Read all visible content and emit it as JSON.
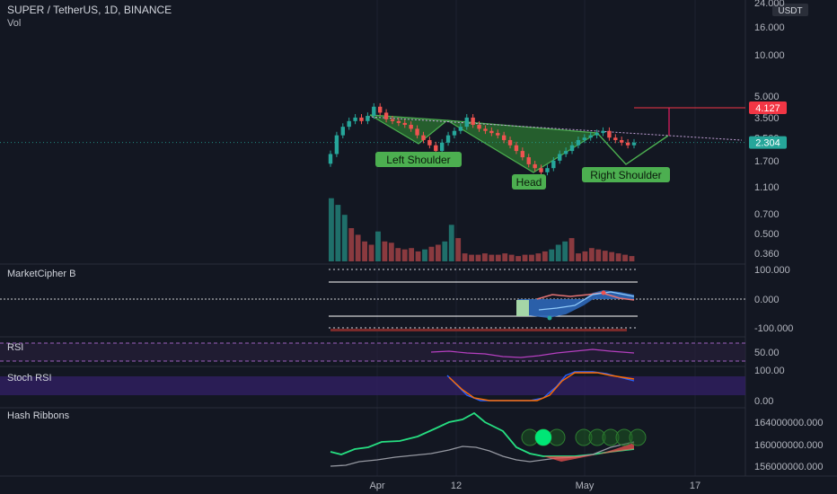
{
  "header": {
    "title": "SUPER / TetherUS, 1D, BINANCE",
    "vol_label": "Vol",
    "currency": "USDT"
  },
  "colors": {
    "background": "#131722",
    "up": "#26a69a",
    "down": "#ef5350",
    "pattern_fill": "#2e7d32",
    "label_green": "#4caf50",
    "target_red": "#f23645",
    "rsi_line": "#b43fbf",
    "stoch_band": "#2f1f5e",
    "hash_fast": "#26de81",
    "hash_slow": "#9598a1"
  },
  "chart_data": [
    {
      "type": "line",
      "panel": "price",
      "scale": "log",
      "y_ticks": [
        "24.000",
        "16.000",
        "10.000",
        "5.000",
        "3.500",
        "2.500",
        "1.700",
        "1.100",
        "0.700",
        "0.500",
        "0.360"
      ],
      "y_tick_values": [
        24,
        16,
        10,
        5,
        3.5,
        2.5,
        1.7,
        1.1,
        0.7,
        0.5,
        0.36
      ],
      "x_ticks": [
        "Apr",
        "12",
        "May",
        "17"
      ],
      "price_labels": {
        "target": "4.127",
        "current": "2.304"
      },
      "annotations": [
        "Left Shoulder",
        "Head",
        "Right Shoulder"
      ],
      "pattern": "inverse head and shoulders",
      "close_approx": [
        1.9,
        2.6,
        3.0,
        3.3,
        3.5,
        3.3,
        3.6,
        4.2,
        3.8,
        3.4,
        3.3,
        3.2,
        3.1,
        2.9,
        2.6,
        2.4,
        2.2,
        2.0,
        2.3,
        2.6,
        2.8,
        3.0,
        3.5,
        3.1,
        2.9,
        2.8,
        2.7,
        2.6,
        2.4,
        2.2,
        2.0,
        1.8,
        1.6,
        1.5,
        1.4,
        1.5,
        1.7,
        1.9,
        2.0,
        2.2,
        2.4,
        2.5,
        2.6,
        2.7,
        2.8,
        2.5,
        2.4,
        2.3,
        2.2,
        2.3
      ]
    },
    {
      "type": "bar",
      "panel": "volume",
      "series_name": "Vol",
      "relative_values": [
        0.95,
        0.85,
        0.7,
        0.5,
        0.4,
        0.3,
        0.25,
        0.45,
        0.3,
        0.28,
        0.2,
        0.18,
        0.2,
        0.15,
        0.18,
        0.22,
        0.25,
        0.3,
        0.55,
        0.35,
        0.12,
        0.1,
        0.1,
        0.12,
        0.1,
        0.1,
        0.12,
        0.1,
        0.08,
        0.1,
        0.1,
        0.12,
        0.15,
        0.18,
        0.25,
        0.3,
        0.35,
        0.12,
        0.15,
        0.2,
        0.18,
        0.16,
        0.14,
        0.12,
        0.1,
        0.08
      ]
    },
    {
      "type": "area",
      "panel": "MarketCipher B",
      "title": "MarketCipher B",
      "y_ticks": [
        "100.000",
        "0.000",
        "-100.000"
      ],
      "y_tick_values": [
        100,
        0,
        -100
      ]
    },
    {
      "type": "line",
      "panel": "RSI",
      "title": "RSI",
      "y_ticks": [
        "50.00"
      ],
      "y_tick_values": [
        50
      ]
    },
    {
      "type": "line",
      "panel": "Stoch RSI",
      "title": "Stoch RSI",
      "y_ticks": [
        "100.00",
        "0.00"
      ],
      "y_tick_values": [
        100,
        0
      ]
    },
    {
      "type": "line",
      "panel": "Hash Ribbons",
      "title": "Hash Ribbons",
      "y_ticks": [
        "164000000.000",
        "160000000.000",
        "156000000.000"
      ],
      "y_tick_values": [
        164000000,
        160000000,
        156000000
      ]
    }
  ]
}
